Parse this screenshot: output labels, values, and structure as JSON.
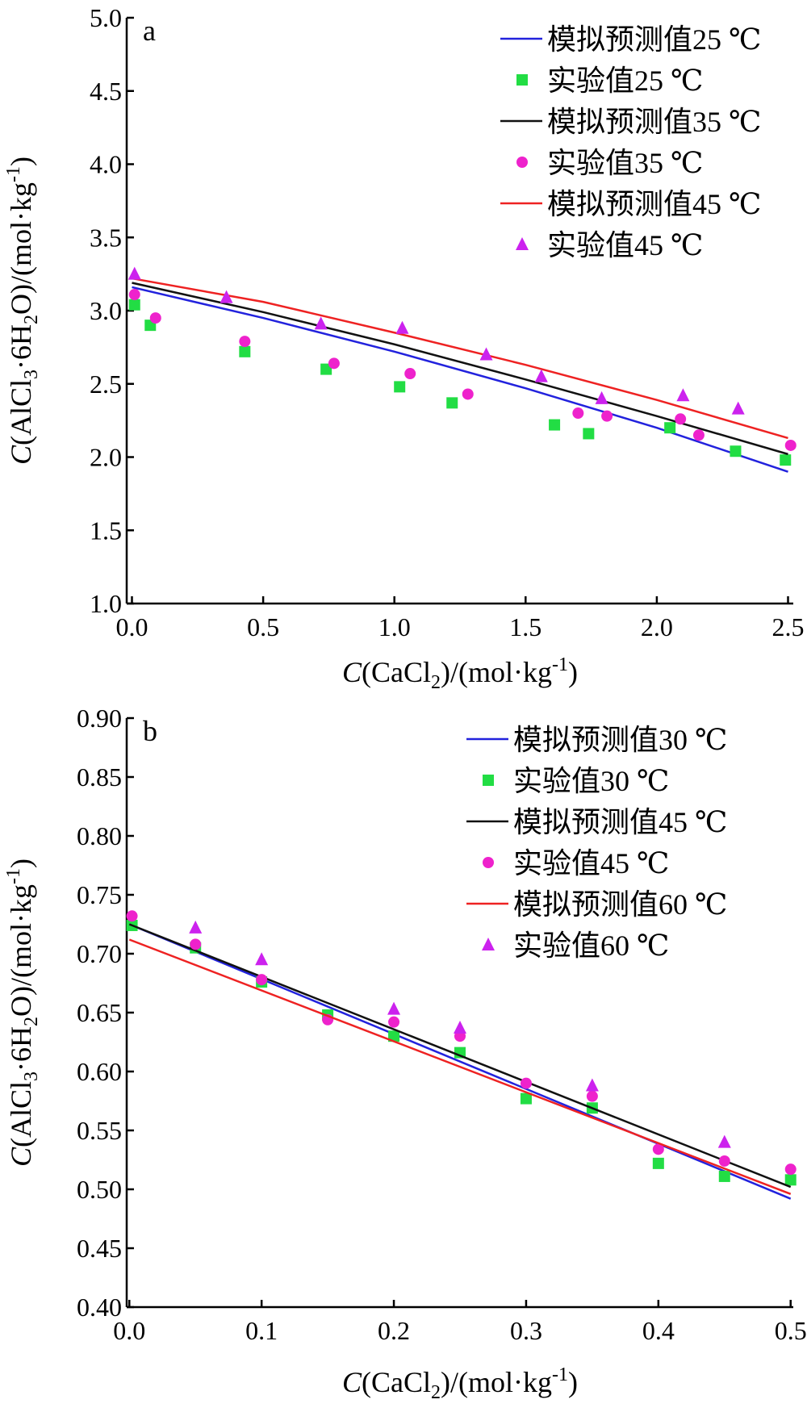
{
  "chart_data": [
    {
      "type": "line",
      "panel_label": "a",
      "xlabel": {
        "italic": "C",
        "pre": "(CaCl",
        "sub": "2",
        "mid": ")/(mol·kg",
        "sup": "-1",
        "post": ")"
      },
      "ylabel": {
        "italic": "C",
        "pre": "(AlCl",
        "sub1": "3",
        "mid1": "·6H",
        "sub2": "2",
        "mid2": "O)/(mol·kg",
        "sup": "-1",
        "post": ")"
      },
      "xlim": [
        -0.02,
        2.52
      ],
      "ylim": [
        1.0,
        5.0
      ],
      "xticks": [
        0.0,
        0.5,
        1.0,
        1.5,
        2.0,
        2.5
      ],
      "xtick_labels": [
        "0.0",
        "0.5",
        "1.0",
        "1.5",
        "2.0",
        "2.5"
      ],
      "yticks": [
        1.0,
        1.5,
        2.0,
        2.5,
        3.0,
        3.5,
        4.0,
        4.5,
        5.0
      ],
      "ytick_labels": [
        "1.0",
        "1.5",
        "2.0",
        "2.5",
        "3.0",
        "3.5",
        "4.0",
        "4.5",
        "5.0"
      ],
      "grid": false,
      "legend_position": "top-right",
      "series": [
        {
          "name": "模拟预测值25 ℃",
          "kind": "line",
          "color": "#2222dd",
          "x": [
            0.0,
            0.5,
            1.0,
            1.5,
            2.0,
            2.5
          ],
          "y": [
            3.16,
            2.95,
            2.72,
            2.47,
            2.2,
            1.9
          ]
        },
        {
          "name": "实验值25 ℃",
          "kind": "marker",
          "marker": "square",
          "color": "#22dd44",
          "x": [
            0.01,
            0.07,
            0.43,
            0.74,
            1.02,
            1.22,
            1.61,
            1.74,
            2.05,
            2.3,
            2.49
          ],
          "y": [
            3.04,
            2.9,
            2.72,
            2.6,
            2.48,
            2.37,
            2.22,
            2.16,
            2.2,
            2.04,
            1.98
          ]
        },
        {
          "name": "模拟预测值35 ℃",
          "kind": "line",
          "color": "#111111",
          "x": [
            0.0,
            0.5,
            1.0,
            1.5,
            2.0,
            2.5
          ],
          "y": [
            3.19,
            2.99,
            2.77,
            2.53,
            2.28,
            2.02
          ]
        },
        {
          "name": "实验值35 ℃",
          "kind": "marker",
          "marker": "circle",
          "color": "#ee22cc",
          "x": [
            0.01,
            0.09,
            0.43,
            0.77,
            1.06,
            1.28,
            1.7,
            1.81,
            2.09,
            2.16,
            2.51
          ],
          "y": [
            3.11,
            2.95,
            2.79,
            2.64,
            2.57,
            2.43,
            2.3,
            2.28,
            2.26,
            2.15,
            2.08
          ]
        },
        {
          "name": "模拟预测值45 ℃",
          "kind": "line",
          "color": "#ee2222",
          "x": [
            0.0,
            0.5,
            1.0,
            1.5,
            2.0,
            2.5
          ],
          "y": [
            3.22,
            3.06,
            2.85,
            2.63,
            2.39,
            2.13
          ]
        },
        {
          "name": "实验值45 ℃",
          "kind": "marker",
          "marker": "triangle",
          "color": "#cc22ee",
          "x": [
            0.01,
            0.36,
            0.72,
            1.03,
            1.35,
            1.56,
            1.79,
            2.1,
            2.31
          ],
          "y": [
            3.25,
            3.09,
            2.91,
            2.88,
            2.7,
            2.55,
            2.4,
            2.42,
            2.33
          ]
        }
      ]
    },
    {
      "type": "line",
      "panel_label": "b",
      "xlabel": {
        "italic": "C",
        "pre": "(CaCl",
        "sub": "2",
        "mid": ")/(mol·kg",
        "sup": "-1",
        "post": ")"
      },
      "ylabel": {
        "italic": "C",
        "pre": "(AlCl",
        "sub1": "3",
        "mid1": "·6H",
        "sub2": "2",
        "mid2": "O)/(mol·kg",
        "sup": "-1",
        "post": ")"
      },
      "xlim": [
        -0.002,
        0.502
      ],
      "ylim": [
        0.4,
        0.9
      ],
      "xticks": [
        0.0,
        0.1,
        0.2,
        0.3,
        0.4,
        0.5
      ],
      "xtick_labels": [
        "0.0",
        "0.1",
        "0.2",
        "0.3",
        "0.4",
        "0.5"
      ],
      "yticks": [
        0.4,
        0.45,
        0.5,
        0.55,
        0.6,
        0.65,
        0.7,
        0.75,
        0.8,
        0.85,
        0.9
      ],
      "ytick_labels": [
        "0.40",
        "0.45",
        "0.50",
        "0.55",
        "0.60",
        "0.65",
        "0.70",
        "0.75",
        "0.80",
        "0.85",
        "0.90"
      ],
      "grid": false,
      "legend_position": "top-right",
      "series": [
        {
          "name": "模拟预测值30 ℃",
          "kind": "line",
          "color": "#2222dd",
          "x": [
            0.0,
            0.5
          ],
          "y": [
            0.725,
            0.492
          ]
        },
        {
          "name": "实验值30 ℃",
          "kind": "marker",
          "marker": "square",
          "color": "#22dd44",
          "x": [
            0.002,
            0.05,
            0.1,
            0.15,
            0.2,
            0.25,
            0.3,
            0.35,
            0.4,
            0.45,
            0.5
          ],
          "y": [
            0.724,
            0.705,
            0.676,
            0.648,
            0.63,
            0.616,
            0.577,
            0.569,
            0.522,
            0.511,
            0.508
          ]
        },
        {
          "name": "模拟预测值45 ℃",
          "kind": "line",
          "color": "#111111",
          "x": [
            0.0,
            0.5
          ],
          "y": [
            0.725,
            0.502
          ]
        },
        {
          "name": "实验值45 ℃",
          "kind": "marker",
          "marker": "circle",
          "color": "#ee22cc",
          "x": [
            0.002,
            0.05,
            0.1,
            0.15,
            0.2,
            0.25,
            0.3,
            0.35,
            0.4,
            0.45,
            0.5
          ],
          "y": [
            0.732,
            0.708,
            0.678,
            0.644,
            0.642,
            0.63,
            0.59,
            0.579,
            0.534,
            0.524,
            0.517
          ]
        },
        {
          "name": "模拟预测值60 ℃",
          "kind": "line",
          "color": "#ee2222",
          "x": [
            0.0,
            0.5
          ],
          "y": [
            0.712,
            0.496
          ]
        },
        {
          "name": "实验值60 ℃",
          "kind": "marker",
          "marker": "triangle",
          "color": "#cc22ee",
          "x": [
            0.05,
            0.1,
            0.2,
            0.25,
            0.35,
            0.45
          ],
          "y": [
            0.722,
            0.695,
            0.653,
            0.637,
            0.588,
            0.54
          ]
        }
      ]
    }
  ]
}
